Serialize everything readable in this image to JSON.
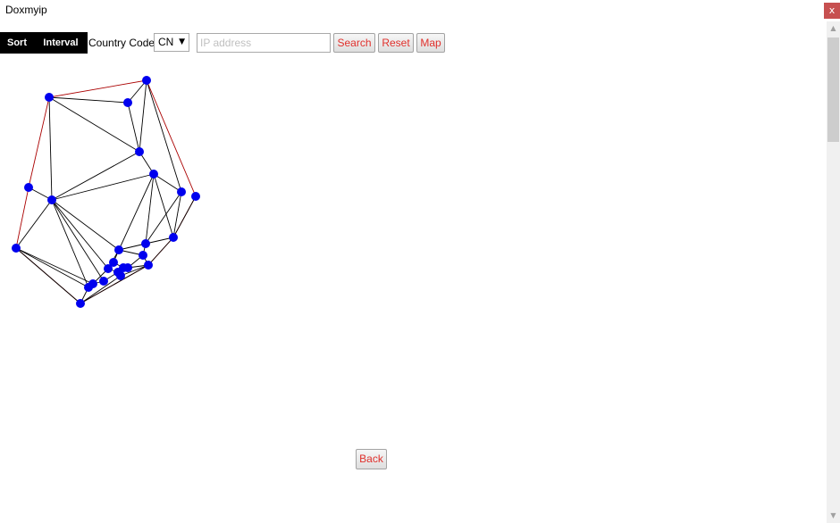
{
  "window": {
    "title": "Doxmyip",
    "close_glyph": "x"
  },
  "toolbar": {
    "sort_label": "Sort",
    "interval_label": "Interval",
    "country_code_label": "Country Code:",
    "country_code_value": "CN",
    "dropdown_glyph": "▼",
    "ip_placeholder": "IP address",
    "ip_value": "",
    "search_label": "Search",
    "reset_label": "Reset",
    "map_label": "Map"
  },
  "footer": {
    "back_label": "Back"
  },
  "graph": {
    "node_color": "#0000ee",
    "edge_color": "#000000",
    "hull_color": "#aa0000"
  },
  "colors": {
    "toolbar_bg": "#000000",
    "button_text": "#e0302c",
    "close_bg": "#c75050"
  }
}
